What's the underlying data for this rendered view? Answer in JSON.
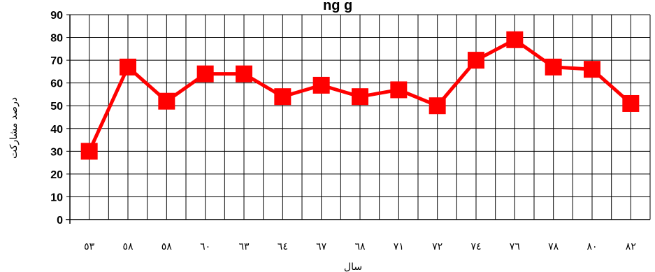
{
  "chart_data": {
    "type": "line",
    "title": "",
    "xlabel": "سال",
    "ylabel": "درصد مشارکت",
    "categories": [
      "٥٣",
      "٥٨",
      "٥٨",
      "٦٠",
      "٦٣",
      "٦٤",
      "٦٧",
      "٦٨",
      "٧١",
      "٧٢",
      "٧٤",
      "٧٦",
      "٧٨",
      "٨٠",
      "٨٢"
    ],
    "series": [
      {
        "values": [
          30,
          67,
          52,
          64,
          64,
          54,
          59,
          54,
          57,
          50,
          70,
          79,
          67,
          66,
          51
        ]
      }
    ],
    "yticks": [
      "0",
      "10",
      "20",
      "30",
      "40",
      "50",
      "60",
      "70",
      "80",
      "90"
    ],
    "ylim": [
      0,
      90
    ],
    "grid": true,
    "line_color": "#ff0000",
    "marker": "square"
  }
}
